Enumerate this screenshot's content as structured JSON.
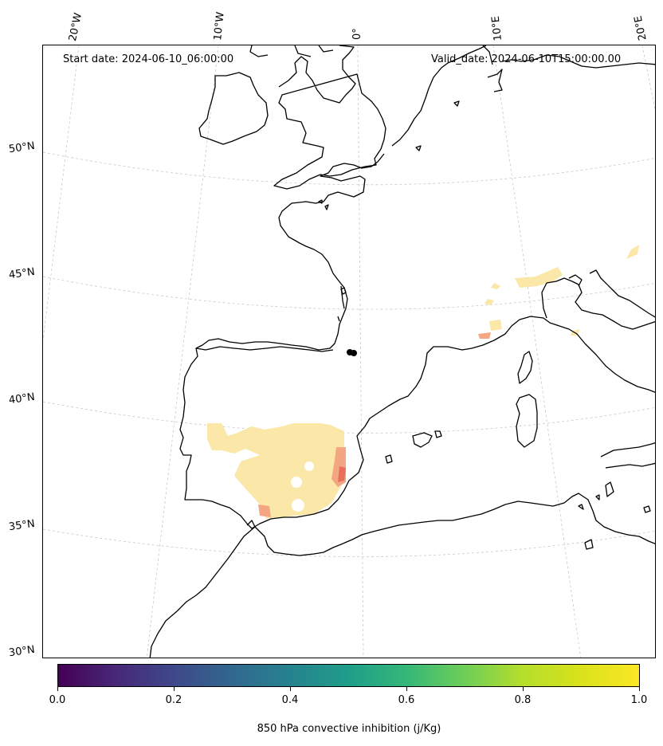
{
  "header": {
    "start_date": "Start date: 2024-06-10_06:00:00",
    "valid_date": "Valid_date: 2024-06-10T15:00:00.00"
  },
  "longitude_ticks": [
    "20°W",
    "10°W",
    "0°",
    "10°E",
    "20°E"
  ],
  "latitude_ticks": [
    "50°N",
    "45°N",
    "40°N",
    "35°N",
    "30°N"
  ],
  "colorbar": {
    "colormap": "viridis",
    "tick_labels": [
      "0.0",
      "0.2",
      "0.4",
      "0.6",
      "0.8",
      "1.0"
    ],
    "range": [
      0.0,
      1.0
    ],
    "label": "850 hPa convective inhibition (j/Kg)"
  },
  "colors": {
    "field_light": "#fbe7a8",
    "field_orange": "#f4a582",
    "field_red": "#e8705a",
    "coastline": "#000000",
    "gridline": "#c8c8c8"
  }
}
